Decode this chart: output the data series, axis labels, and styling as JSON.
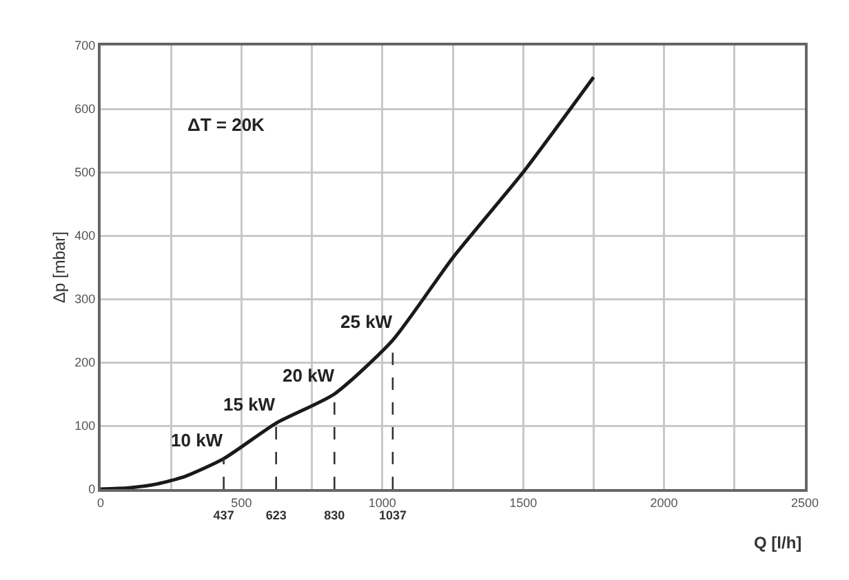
{
  "chart_data": {
    "type": "line",
    "xlabel": "Q [l/h]",
    "ylabel": "Δp [mbar]",
    "xlim": [
      0,
      2500
    ],
    "xticks": [
      0,
      {
        "value": 250,
        "label": null
      },
      500,
      {
        "value": 750,
        "label": null
      },
      1000,
      {
        "value": 1250,
        "label": null
      },
      1500,
      {
        "value": 1750,
        "label": null
      },
      2000,
      {
        "value": 2250,
        "label": null
      },
      2500
    ],
    "x2lim": [
      0,
      2500
    ],
    "x2ticks": [
      437,
      623,
      830,
      1037
    ],
    "ylim": [
      0,
      700
    ],
    "yticks": [
      0,
      100,
      200,
      300,
      400,
      500,
      600,
      700
    ],
    "grid": true,
    "line_style": "solid",
    "marker": "none",
    "series": [
      {
        "color": "#1a1a1a",
        "x": [
          0,
          100,
          200,
          300,
          437,
          623,
          830,
          1037,
          1250,
          1500,
          1750
        ],
        "values": [
          0,
          2,
          8,
          20,
          48,
          104,
          150,
          235,
          365,
          500,
          650
        ]
      },
      {
        "color": "#333333",
        "line_style": "dashed",
        "x": [
          437,
          437
        ],
        "values": [
          0,
          48
        ]
      },
      {
        "color": "#333333",
        "line_style": "dashed",
        "x": [
          623,
          623
        ],
        "values": [
          0,
          104
        ]
      },
      {
        "color": "#333333",
        "line_style": "dashed",
        "x": [
          830,
          830
        ],
        "values": [
          0,
          150
        ]
      },
      {
        "color": "#333333",
        "line_style": "dashed",
        "x": [
          1037,
          1037
        ],
        "values": [
          0,
          235
        ]
      }
    ],
    "annotations": [
      "ΔT = 20K",
      {
        "text": "10 kW",
        "x": 437,
        "y": 48
      },
      {
        "text": "15 kW",
        "x": 623,
        "y": 104
      },
      {
        "text": "20 kW",
        "x": 830,
        "y": 150
      },
      {
        "text": "25 kW",
        "x": 1037,
        "y": 235
      }
    ]
  }
}
